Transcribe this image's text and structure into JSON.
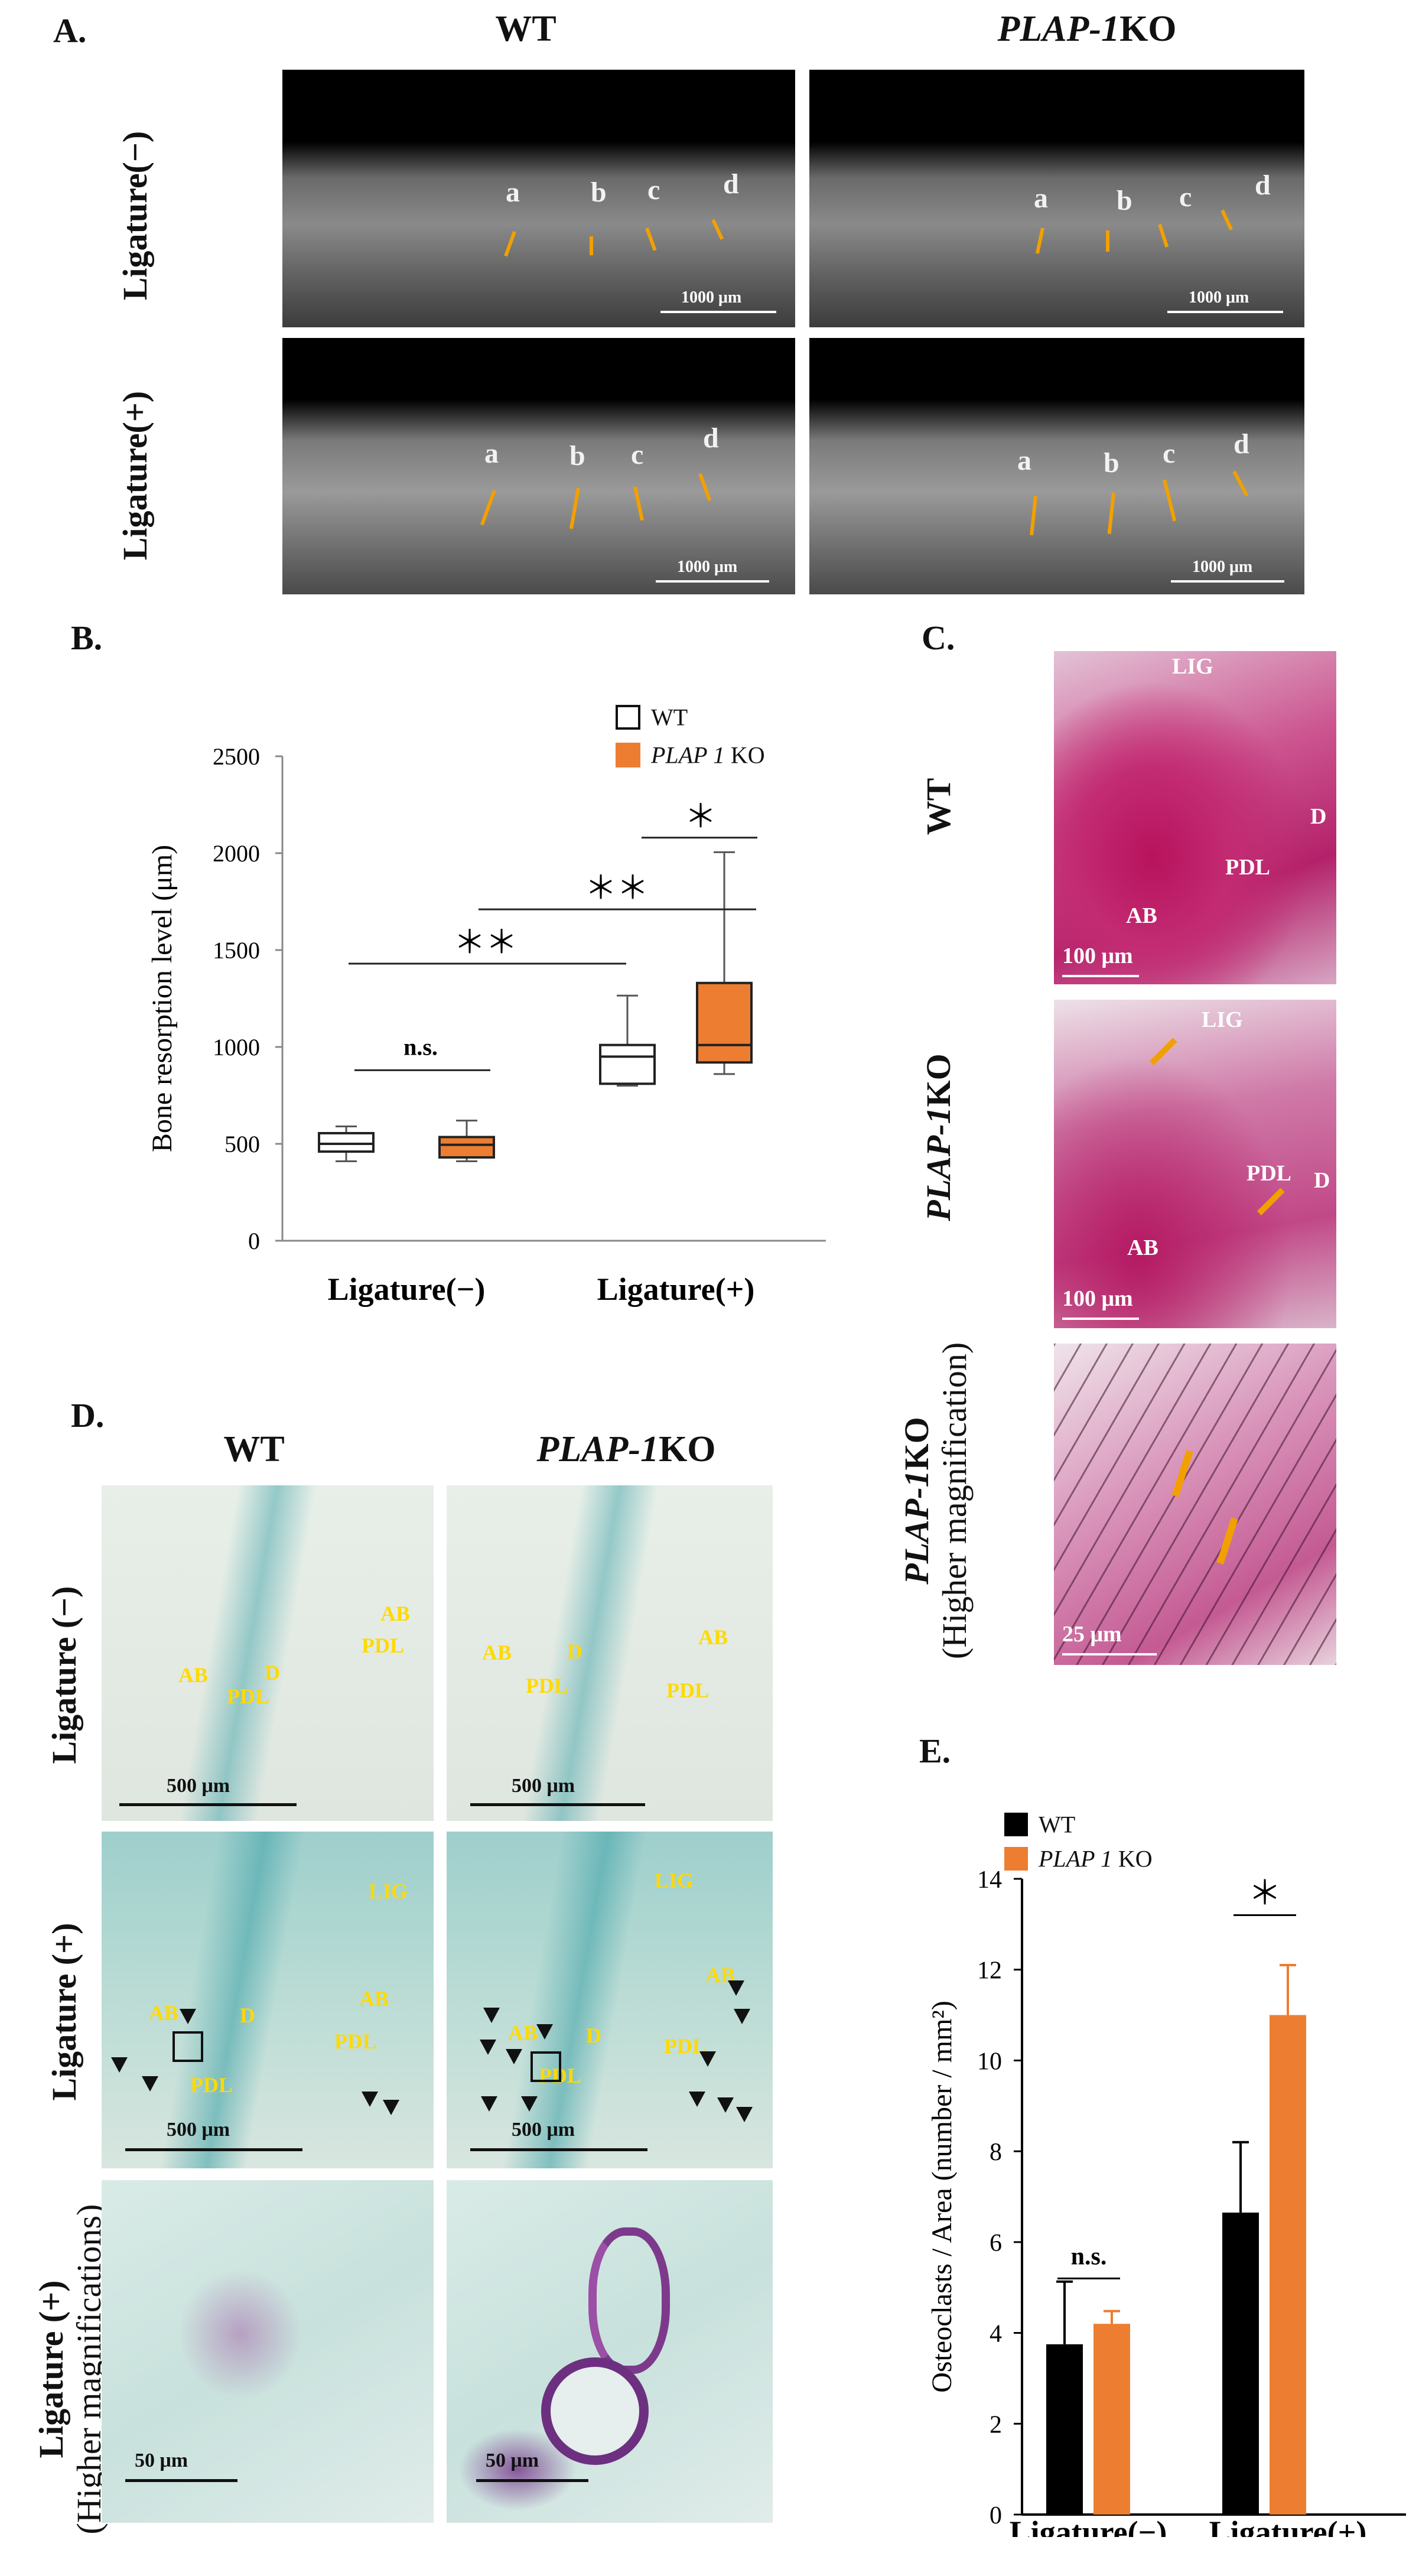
{
  "panel_a": {
    "label": "A.",
    "col_wt": "WT",
    "col_ko": "PLAP-1",
    "col_ko_suffix": "KO",
    "row_lig_minus": "Ligature(−)",
    "row_lig_plus": "Ligature(+)",
    "teeth": [
      "a",
      "b",
      "c",
      "d"
    ],
    "scale": "1000 μm"
  },
  "panel_b": {
    "label": "B.",
    "legend_wt": "WT",
    "legend_ko": "PLAP 1",
    "legend_ko_suffix": " KO",
    "ns": "n.s.",
    "sig_double_left": "＊＊",
    "sig_double_right": "＊＊",
    "sig_single": "＊",
    "chart_data": {
      "type": "box",
      "ylabel": "Bone resorption level (μm)",
      "ylim": [
        0,
        2500
      ],
      "yticks": [
        0,
        500,
        1000,
        1500,
        2000,
        2500
      ],
      "categories": [
        "Ligature(−)",
        "Ligature(+)"
      ],
      "series": [
        {
          "name": "WT",
          "color": "#ffffff",
          "boxes": [
            {
              "min": 410,
              "q1": 460,
              "median": 500,
              "q3": 555,
              "max": 590
            },
            {
              "min": 800,
              "q1": 810,
              "median": 950,
              "q3": 1010,
              "max": 1265
            }
          ]
        },
        {
          "name": "PLAP 1 KO",
          "color": "#ed7d31",
          "boxes": [
            {
              "min": 410,
              "q1": 430,
              "median": 495,
              "q3": 535,
              "max": 620
            },
            {
              "min": 860,
              "q1": 920,
              "median": 1010,
              "q3": 1330,
              "max": 2005
            }
          ]
        }
      ]
    }
  },
  "panel_c": {
    "label": "C.",
    "row_wt": "WT",
    "row_ko": "PLAP-1",
    "row_ko_suffix": "KO",
    "row_ko_high": "PLAP-1",
    "row_ko_high_suffix": "KO",
    "row_ko_high_sub": "(Higher magnification)",
    "tags": {
      "lig": "LIG",
      "d": "D",
      "pdl": "PDL",
      "ab": "AB"
    },
    "scale_100": "100 μm",
    "scale_25": "25 μm"
  },
  "panel_d": {
    "label": "D.",
    "col_wt": "WT",
    "col_ko": "PLAP-1",
    "col_ko_suffix": "KO",
    "row_minus": "Ligature (−)",
    "row_plus": "Ligature (+)",
    "row_high": "Ligature (+)",
    "row_high_sub": "(Higher magnifications)",
    "tags": {
      "ab": "AB",
      "d": "D",
      "pdl": "PDL",
      "lig": "LIG"
    },
    "scale_500": "500 μm",
    "scale_50": "50 μm"
  },
  "panel_e": {
    "label": "E.",
    "legend_wt": "WT",
    "legend_ko": "PLAP 1",
    "legend_ko_suffix": " KO",
    "ns": "n.s.",
    "sig": "＊",
    "chart_data": {
      "type": "bar",
      "ylabel": "Osteoclasts / Area (number / mm²)",
      "ylim": [
        0,
        14
      ],
      "yticks": [
        0,
        2,
        4,
        6,
        8,
        10,
        12,
        14
      ],
      "categories": [
        "Ligature(−)",
        "Ligature(+)"
      ],
      "series": [
        {
          "name": "WT",
          "color": "#000000",
          "values": [
            3.75,
            6.65
          ],
          "errors": [
            1.38,
            1.55
          ]
        },
        {
          "name": "PLAP 1 KO",
          "color": "#ed7d31",
          "values": [
            4.2,
            11.0
          ],
          "errors": [
            0.28,
            1.1
          ]
        }
      ]
    }
  },
  "colors": {
    "orange": "#ed7d31",
    "yellow_tag": "#ffd900",
    "ligature_line": "#f2a000"
  }
}
